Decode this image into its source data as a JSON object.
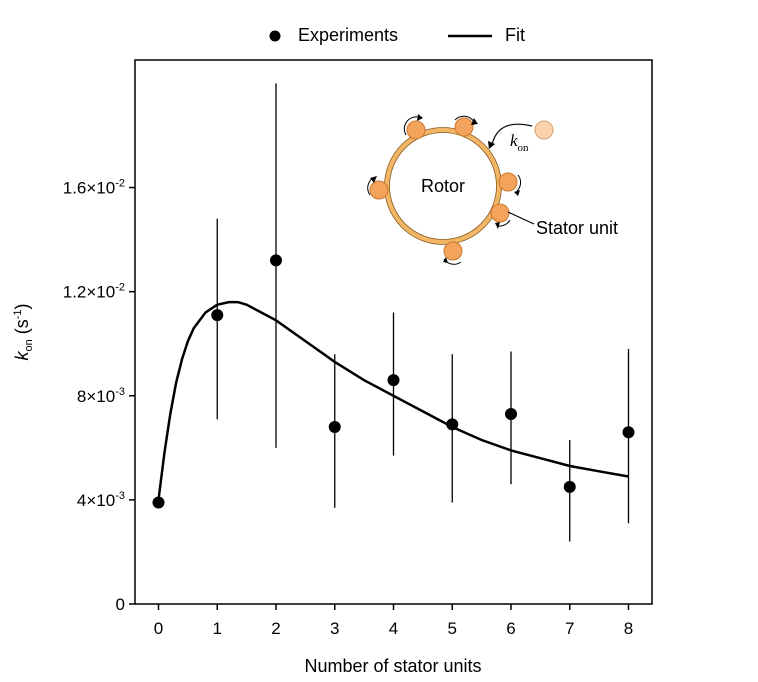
{
  "legend": {
    "experiments_label": "Experiments",
    "fit_label": "Fit"
  },
  "colors": {
    "data": "#000000",
    "fit": "#000000",
    "stator_fill": "#F4A35C",
    "stator_stroke": "#C8782E",
    "rotor_ring": "#F2B766",
    "free_stator_fill": "#FAD2AE"
  },
  "inset": {
    "rotor_label": "Rotor",
    "stator_label": "Stator unit",
    "rate_symbol": "k",
    "rate_subscript": "on"
  },
  "chart_data": {
    "type": "scatter",
    "xlabel": "Number of stator units",
    "ylabel_symbol": "k",
    "ylabel_subscript": "on",
    "ylabel_unit_prefix": "(s",
    "ylabel_unit_exponent": "-1",
    "ylabel_unit_suffix": ")",
    "xlim": [
      -0.4,
      8.4
    ],
    "ylim": [
      0,
      0.0209
    ],
    "x_ticks": [
      0,
      1,
      2,
      3,
      4,
      5,
      6,
      7,
      8
    ],
    "x_tick_labels": [
      "0",
      "1",
      "2",
      "3",
      "4",
      "5",
      "6",
      "7",
      "8"
    ],
    "y_ticks": [
      {
        "value": 0,
        "mantissa": "0",
        "exponent": ""
      },
      {
        "value": 0.004,
        "mantissa": "4×10",
        "exponent": "-3"
      },
      {
        "value": 0.008,
        "mantissa": "8×10",
        "exponent": "-3"
      },
      {
        "value": 0.012,
        "mantissa": "1.2×10",
        "exponent": "-2"
      },
      {
        "value": 0.016,
        "mantissa": "1.6×10",
        "exponent": "-2"
      }
    ],
    "grid": false,
    "legend_position": "top-center",
    "series": [
      {
        "name": "Experiments",
        "kind": "points_with_error_bars",
        "x": [
          0,
          1,
          2,
          3,
          4,
          5,
          6,
          7,
          8
        ],
        "y": [
          0.0039,
          0.0111,
          0.0132,
          0.0068,
          0.0086,
          0.0069,
          0.0073,
          0.0045,
          0.0066
        ],
        "err_low": [
          null,
          0.0071,
          0.006,
          0.0037,
          0.0057,
          0.0039,
          0.0046,
          0.0024,
          0.0031
        ],
        "err_high": [
          null,
          0.0148,
          0.02,
          0.0096,
          0.0112,
          0.0096,
          0.0097,
          0.0063,
          0.0098
        ]
      },
      {
        "name": "Fit",
        "kind": "line",
        "x": [
          0,
          0.1,
          0.2,
          0.3,
          0.4,
          0.5,
          0.6,
          0.8,
          1.0,
          1.2,
          1.35,
          1.5,
          1.75,
          2.0,
          2.5,
          3.0,
          3.5,
          4.0,
          4.5,
          5.0,
          5.5,
          6.0,
          6.5,
          7.0,
          7.5,
          8.0
        ],
        "y": [
          0.004,
          0.0058,
          0.0073,
          0.0085,
          0.0094,
          0.0101,
          0.0106,
          0.0112,
          0.0115,
          0.0116,
          0.0116,
          0.0115,
          0.0112,
          0.0109,
          0.0101,
          0.0093,
          0.0086,
          0.008,
          0.0074,
          0.0068,
          0.0063,
          0.0059,
          0.0056,
          0.0053,
          0.0051,
          0.0049
        ]
      }
    ]
  }
}
